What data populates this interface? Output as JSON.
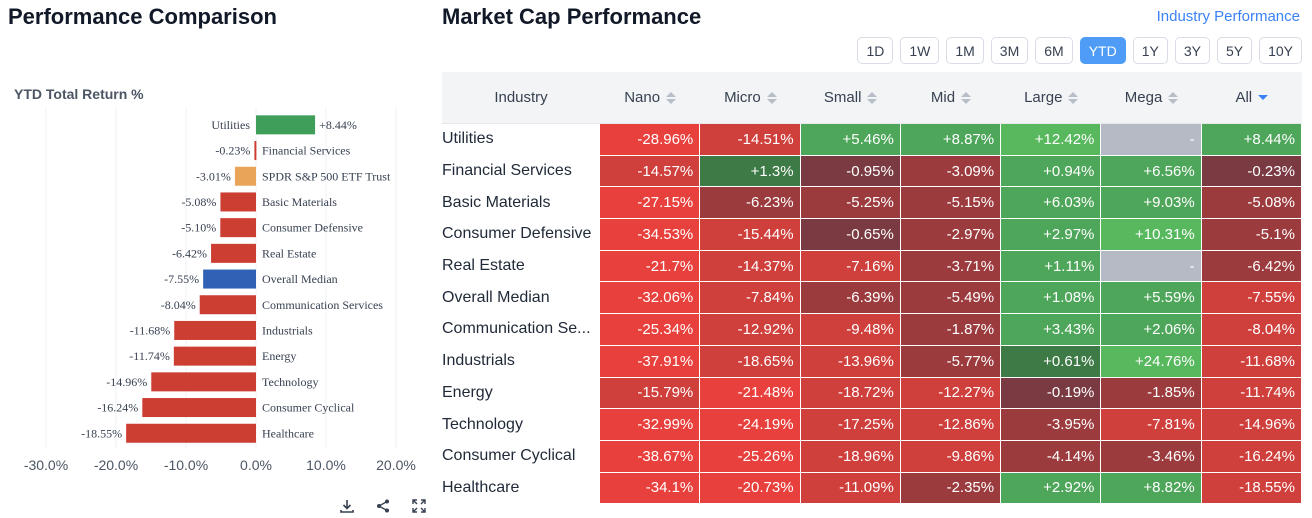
{
  "left": {
    "title": "Performance Comparison",
    "chart_heading": "YTD Total Return %"
  },
  "right": {
    "title": "Market Cap Performance",
    "link": "Industry Performance",
    "periods": [
      "1D",
      "1W",
      "1M",
      "3M",
      "6M",
      "YTD",
      "1Y",
      "3Y",
      "5Y",
      "10Y"
    ],
    "active_period": "YTD"
  },
  "colors": {
    "strong_red": "#e8403c",
    "red": "#cf3f3c",
    "dark_red": "#9c3b3e",
    "maroon": "#7a3a42",
    "green": "#4ea65a",
    "dark_green": "#3d7a45",
    "bright_green": "#57b85e",
    "gray": "#b6bac4",
    "bar_red": "#cc3d32",
    "bar_green": "#3f9e5a",
    "bar_orange": "#e8a55a",
    "bar_blue": "#2f62b5"
  },
  "chart_data": {
    "type": "bar",
    "orientation": "horizontal",
    "title": "YTD Total Return %",
    "categories": [
      "Utilities",
      "Financial Services",
      "SPDR S&P 500 ETF Trust",
      "Basic Materials",
      "Consumer Defensive",
      "Real Estate",
      "Overall Median",
      "Communication Services",
      "Industrials",
      "Energy",
      "Technology",
      "Consumer Cyclical",
      "Healthcare"
    ],
    "values": [
      8.44,
      -0.23,
      -3.01,
      -5.08,
      -5.1,
      -6.42,
      -7.55,
      -8.04,
      -11.68,
      -11.74,
      -14.96,
      -16.24,
      -18.55
    ],
    "value_labels": [
      "+8.44%",
      "-0.23%",
      "-3.01%",
      "-5.08%",
      "-5.10%",
      "-6.42%",
      "-7.55%",
      "-8.04%",
      "-11.68%",
      "-11.74%",
      "-14.96%",
      "-16.24%",
      "-18.55%"
    ],
    "bar_colors": [
      "green",
      "red",
      "orange",
      "red",
      "red",
      "red",
      "blue",
      "red",
      "red",
      "red",
      "red",
      "red",
      "red"
    ],
    "xlim": [
      -30,
      20
    ],
    "xticks": [
      "-30.0%",
      "-20.0%",
      "-10.0%",
      "0.0%",
      "10.0%",
      "20.0%"
    ],
    "tick_values": [
      -30,
      -20,
      -10,
      0,
      10,
      20
    ],
    "grid": true
  },
  "table": {
    "columns": [
      "Industry",
      "Nano",
      "Micro",
      "Small",
      "Mid",
      "Large",
      "Mega",
      "All"
    ],
    "rows": [
      {
        "name": "Utilities",
        "values": [
          "-28.96%",
          "-14.51%",
          "+5.46%",
          "+8.87%",
          "+12.42%",
          "-",
          "+8.44%"
        ],
        "colors": [
          "strong_red",
          "red",
          "green",
          "green",
          "bright_green",
          "gray",
          "green"
        ]
      },
      {
        "name": "Financial Services",
        "values": [
          "-14.57%",
          "+1.3%",
          "-0.95%",
          "-3.09%",
          "+0.94%",
          "+6.56%",
          "-0.23%"
        ],
        "colors": [
          "red",
          "dark_green",
          "maroon",
          "dark_red",
          "green",
          "green",
          "maroon"
        ]
      },
      {
        "name": "Basic Materials",
        "values": [
          "-27.15%",
          "-6.23%",
          "-5.25%",
          "-5.15%",
          "+6.03%",
          "+9.03%",
          "-5.08%"
        ],
        "colors": [
          "strong_red",
          "dark_red",
          "dark_red",
          "dark_red",
          "green",
          "green",
          "dark_red"
        ]
      },
      {
        "name": "Consumer Defensive",
        "values": [
          "-34.53%",
          "-15.44%",
          "-0.65%",
          "-2.97%",
          "+2.97%",
          "+10.31%",
          "-5.1%"
        ],
        "colors": [
          "strong_red",
          "red",
          "maroon",
          "dark_red",
          "green",
          "bright_green",
          "dark_red"
        ]
      },
      {
        "name": "Real Estate",
        "values": [
          "-21.7%",
          "-14.37%",
          "-7.16%",
          "-3.71%",
          "+1.11%",
          "-",
          "-6.42%"
        ],
        "colors": [
          "strong_red",
          "red",
          "red",
          "dark_red",
          "green",
          "gray",
          "dark_red"
        ]
      },
      {
        "name": "Overall Median",
        "values": [
          "-32.06%",
          "-7.84%",
          "-6.39%",
          "-5.49%",
          "+1.08%",
          "+5.59%",
          "-7.55%"
        ],
        "colors": [
          "strong_red",
          "red",
          "dark_red",
          "dark_red",
          "green",
          "green",
          "red"
        ]
      },
      {
        "name": "Communication Se...",
        "values": [
          "-25.34%",
          "-12.92%",
          "-9.48%",
          "-1.87%",
          "+3.43%",
          "+2.06%",
          "-8.04%"
        ],
        "colors": [
          "strong_red",
          "red",
          "red",
          "dark_red",
          "green",
          "green",
          "red"
        ]
      },
      {
        "name": "Industrials",
        "values": [
          "-37.91%",
          "-18.65%",
          "-13.96%",
          "-5.77%",
          "+0.61%",
          "+24.76%",
          "-11.68%"
        ],
        "colors": [
          "strong_red",
          "red",
          "red",
          "dark_red",
          "dark_green",
          "bright_green",
          "red"
        ]
      },
      {
        "name": "Energy",
        "values": [
          "-15.79%",
          "-21.48%",
          "-18.72%",
          "-12.27%",
          "-0.19%",
          "-1.85%",
          "-11.74%"
        ],
        "colors": [
          "red",
          "strong_red",
          "red",
          "red",
          "maroon",
          "dark_red",
          "red"
        ]
      },
      {
        "name": "Technology",
        "values": [
          "-32.99%",
          "-24.19%",
          "-17.25%",
          "-12.86%",
          "-3.95%",
          "-7.81%",
          "-14.96%"
        ],
        "colors": [
          "strong_red",
          "strong_red",
          "red",
          "red",
          "dark_red",
          "red",
          "red"
        ]
      },
      {
        "name": "Consumer Cyclical",
        "values": [
          "-38.67%",
          "-25.26%",
          "-18.96%",
          "-9.86%",
          "-4.14%",
          "-3.46%",
          "-16.24%"
        ],
        "colors": [
          "strong_red",
          "strong_red",
          "red",
          "red",
          "dark_red",
          "dark_red",
          "red"
        ]
      },
      {
        "name": "Healthcare",
        "values": [
          "-34.1%",
          "-20.73%",
          "-11.09%",
          "-2.35%",
          "+2.92%",
          "+8.82%",
          "-18.55%"
        ],
        "colors": [
          "strong_red",
          "strong_red",
          "red",
          "dark_red",
          "green",
          "green",
          "red"
        ]
      }
    ]
  }
}
